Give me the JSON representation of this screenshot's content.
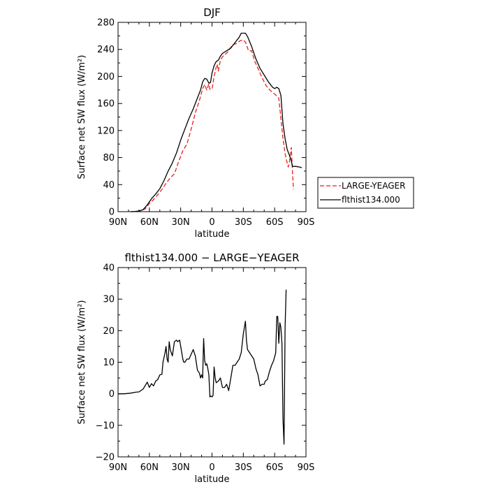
{
  "chart_data": [
    {
      "type": "line",
      "title": "DJF",
      "xlabel": "latitude",
      "ylabel": "Surface net SW flux (W/m²)",
      "xlim": [
        90,
        -90
      ],
      "ylim": [
        0,
        280
      ],
      "x_ticks": [
        90,
        60,
        30,
        0,
        -30,
        -60,
        -90
      ],
      "x_tick_labels": [
        "90N",
        "60N",
        "30N",
        "0",
        "30S",
        "60S",
        "90S"
      ],
      "y_ticks": [
        0,
        40,
        80,
        120,
        160,
        200,
        240,
        280
      ],
      "y_tick_labels": [
        "0",
        "40",
        "80",
        "120",
        "160",
        "200",
        "240",
        "280"
      ],
      "legend_position": "right",
      "series": [
        {
          "name": "LARGE-YEAGER",
          "color": "#e8201a",
          "dash": "dashed",
          "points": [
            [
              78,
              0
            ],
            [
              72,
              0.5
            ],
            [
              68,
              1.5
            ],
            [
              64,
              4
            ],
            [
              60,
              12
            ],
            [
              56,
              18
            ],
            [
              52,
              25
            ],
            [
              48,
              33
            ],
            [
              44,
              42
            ],
            [
              40,
              50
            ],
            [
              36,
              56
            ],
            [
              32,
              74
            ],
            [
              28,
              90
            ],
            [
              24,
              100
            ],
            [
              20,
              122
            ],
            [
              16,
              146
            ],
            [
              12,
              165
            ],
            [
              9,
              182
            ],
            [
              7,
              188
            ],
            [
              5,
              180
            ],
            [
              3,
              189
            ],
            [
              2,
              181
            ],
            [
              0,
              181
            ],
            [
              -2,
              200
            ],
            [
              -4,
              214
            ],
            [
              -5,
              218
            ],
            [
              -6,
              208
            ],
            [
              -8,
              224
            ],
            [
              -10,
              229
            ],
            [
              -12,
              232
            ],
            [
              -15,
              236
            ],
            [
              -18,
              243
            ],
            [
              -20,
              247
            ],
            [
              -22,
              248
            ],
            [
              -24,
              249
            ],
            [
              -27,
              253
            ],
            [
              -30,
              254
            ],
            [
              -32,
              251
            ],
            [
              -35,
              238
            ],
            [
              -38,
              238
            ],
            [
              -41,
              222
            ],
            [
              -44,
              212
            ],
            [
              -48,
              198
            ],
            [
              -52,
              186
            ],
            [
              -56,
              179
            ],
            [
              -60,
              174
            ],
            [
              -64,
              168
            ],
            [
              -66,
              138
            ],
            [
              -68,
              108
            ],
            [
              -70,
              86
            ],
            [
              -72,
              72
            ],
            [
              -73,
              66
            ],
            [
              -74,
              72
            ],
            [
              -75,
              84
            ],
            [
              -76,
              95
            ],
            [
              -77,
              60
            ],
            [
              -78,
              33
            ]
          ]
        },
        {
          "name": "flthist134.000",
          "color": "#000000",
          "dash": "solid",
          "points": [
            [
              78,
              0
            ],
            [
              74,
              0.2
            ],
            [
              70,
              1
            ],
            [
              66,
              3
            ],
            [
              62,
              10
            ],
            [
              58,
              19
            ],
            [
              54,
              26
            ],
            [
              50,
              34
            ],
            [
              46,
              46
            ],
            [
              42,
              60
            ],
            [
              38,
              72
            ],
            [
              34,
              87
            ],
            [
              30,
              106
            ],
            [
              26,
              122
            ],
            [
              22,
              138
            ],
            [
              18,
              152
            ],
            [
              14,
              168
            ],
            [
              11,
              180
            ],
            [
              9,
              192
            ],
            [
              7,
              197
            ],
            [
              5,
              196
            ],
            [
              3,
              190
            ],
            [
              1.5,
              191
            ],
            [
              0,
              205
            ],
            [
              -2,
              216
            ],
            [
              -4,
              222
            ],
            [
              -6,
              224
            ],
            [
              -8,
              230
            ],
            [
              -10,
              234
            ],
            [
              -14,
              238
            ],
            [
              -18,
              242
            ],
            [
              -22,
              250
            ],
            [
              -26,
              258
            ],
            [
              -28,
              264
            ],
            [
              -32,
              264
            ],
            [
              -34,
              259
            ],
            [
              -38,
              244
            ],
            [
              -42,
              226
            ],
            [
              -46,
              212
            ],
            [
              -50,
              202
            ],
            [
              -54,
              192
            ],
            [
              -58,
              184
            ],
            [
              -60,
              182
            ],
            [
              -62,
              184
            ],
            [
              -64,
              182
            ],
            [
              -66,
              172
            ],
            [
              -68,
              130
            ],
            [
              -70,
              108
            ],
            [
              -72,
              92
            ],
            [
              -74,
              84
            ],
            [
              -76,
              75
            ],
            [
              -77,
              67
            ],
            [
              -80,
              67
            ],
            [
              -84,
              66
            ],
            [
              -86,
              65
            ]
          ]
        }
      ]
    },
    {
      "type": "line",
      "title": "flthist134.000 − LARGE−YEAGER",
      "xlabel": "latitude",
      "ylabel": "Surface net SW flux (W/m²)",
      "xlim": [
        90,
        -90
      ],
      "ylim": [
        -20,
        40
      ],
      "x_ticks": [
        90,
        60,
        30,
        0,
        -30,
        -60,
        -90
      ],
      "x_tick_labels": [
        "90N",
        "60N",
        "30N",
        "0",
        "30S",
        "60S",
        "90S"
      ],
      "y_ticks": [
        -20,
        -10,
        0,
        10,
        20,
        30,
        40
      ],
      "y_tick_labels": [
        "−20",
        "−10",
        "0",
        "10",
        "20",
        "30",
        "40"
      ],
      "series": [
        {
          "color": "#000000",
          "dash": "solid",
          "points": [
            [
              90,
              0
            ],
            [
              84,
              0
            ],
            [
              78,
              0.2
            ],
            [
              73,
              0.5
            ],
            [
              70,
              0.6
            ],
            [
              66,
              1.5
            ],
            [
              62,
              3.7
            ],
            [
              60,
              2
            ],
            [
              58,
              3.2
            ],
            [
              56,
              2.5
            ],
            [
              54,
              4
            ],
            [
              52,
              4.5
            ],
            [
              50,
              6
            ],
            [
              48,
              6.2
            ],
            [
              47,
              10
            ],
            [
              45,
              13
            ],
            [
              44,
              15
            ],
            [
              43,
              11
            ],
            [
              42,
              10
            ],
            [
              41,
              16.5
            ],
            [
              40,
              14
            ],
            [
              38,
              12
            ],
            [
              36,
              16.5
            ],
            [
              34,
              17
            ],
            [
              33,
              16.5
            ],
            [
              31,
              17
            ],
            [
              30,
              15
            ],
            [
              28,
              11
            ],
            [
              27,
              10
            ],
            [
              26,
              10
            ],
            [
              24,
              11
            ],
            [
              22,
              11
            ],
            [
              20,
              12.5
            ],
            [
              18,
              14
            ],
            [
              16,
              12
            ],
            [
              14,
              7.5
            ],
            [
              12,
              6.5
            ],
            [
              11,
              5
            ],
            [
              10,
              6
            ],
            [
              9,
              5
            ],
            [
              8,
              17.5
            ],
            [
              7,
              10.5
            ],
            [
              6,
              9
            ],
            [
              5,
              9.5
            ],
            [
              4,
              8
            ],
            [
              3,
              6
            ],
            [
              2,
              -1
            ],
            [
              1,
              -0.7
            ],
            [
              0,
              -1
            ],
            [
              -1,
              -0.5
            ],
            [
              -2,
              8.5
            ],
            [
              -3,
              5
            ],
            [
              -4,
              3.5
            ],
            [
              -6,
              4
            ],
            [
              -8,
              5
            ],
            [
              -10,
              2
            ],
            [
              -12,
              2
            ],
            [
              -14,
              3
            ],
            [
              -16,
              1
            ],
            [
              -18,
              5
            ],
            [
              -20,
              9
            ],
            [
              -22,
              9
            ],
            [
              -24,
              10
            ],
            [
              -26,
              11
            ],
            [
              -28,
              13
            ],
            [
              -30,
              19
            ],
            [
              -32,
              23
            ],
            [
              -33,
              17
            ],
            [
              -34,
              14
            ],
            [
              -36,
              13
            ],
            [
              -38,
              12
            ],
            [
              -40,
              11
            ],
            [
              -42,
              8
            ],
            [
              -44,
              6
            ],
            [
              -46,
              2.5
            ],
            [
              -48,
              3
            ],
            [
              -50,
              3
            ],
            [
              -51,
              4
            ],
            [
              -53,
              4.5
            ],
            [
              -55,
              7
            ],
            [
              -57,
              9
            ],
            [
              -59,
              10.5
            ],
            [
              -61,
              13
            ],
            [
              -62,
              24.5
            ],
            [
              -63,
              24.5
            ],
            [
              -64,
              16
            ],
            [
              -65,
              22.5
            ],
            [
              -66,
              21
            ],
            [
              -67,
              16
            ],
            [
              -68,
              -8
            ],
            [
              -69,
              -16
            ],
            [
              -70,
              21
            ],
            [
              -71,
              33
            ]
          ]
        }
      ]
    }
  ]
}
